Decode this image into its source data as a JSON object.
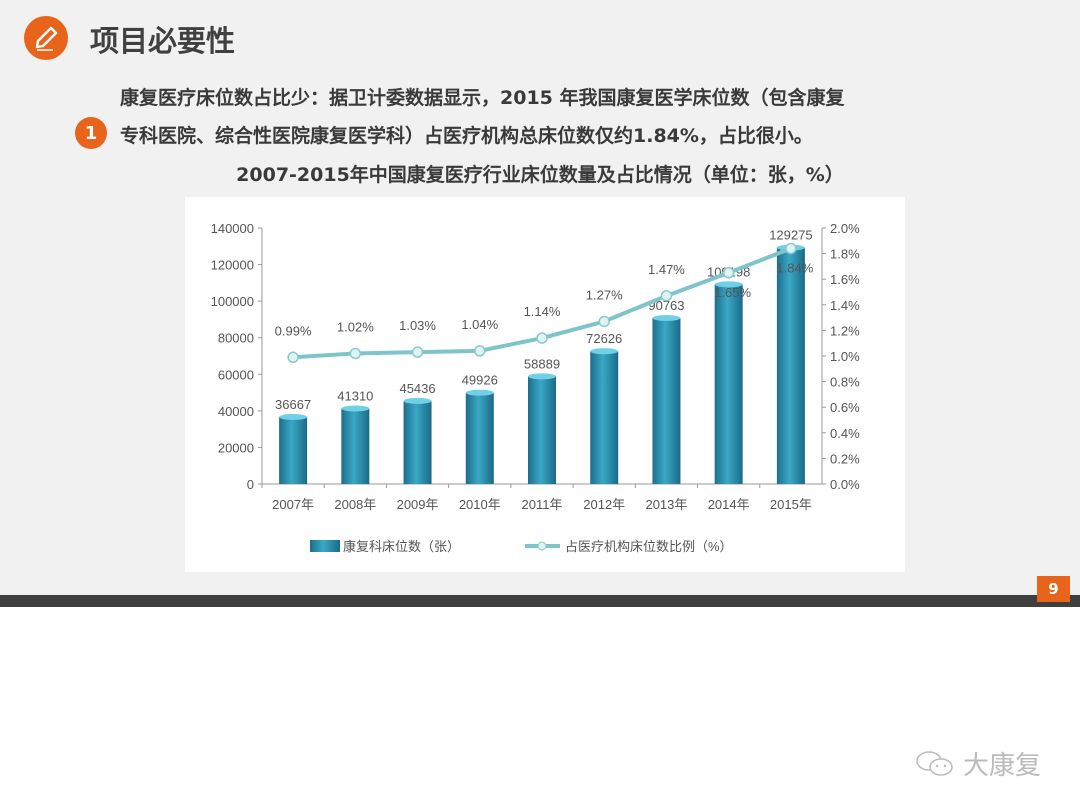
{
  "header": {
    "title": "项目必要性",
    "icon": "pencil-icon"
  },
  "bullet": {
    "number": "1"
  },
  "body": {
    "line1": "康复医疗床位数占比少：据卫计委数据显示，2015 年我国康复医学床位数（包含康复",
    "line2": "专科医院、综合性医院康复医学科）占医疗机构总床位数仅约1.84%，占比很小。"
  },
  "chart_title": "2007-2015年中国康复医疗行业床位数量及占比情况（单位：张，%）",
  "chart_data": {
    "type": "bar+line",
    "categories": [
      "2007年",
      "2008年",
      "2009年",
      "2010年",
      "2011年",
      "2012年",
      "2013年",
      "2014年",
      "2015年"
    ],
    "series": [
      {
        "name": "康复科床位数（张）",
        "type": "bar",
        "axis": "left",
        "color": "#2b8fae",
        "values": [
          36667,
          41310,
          45436,
          49926,
          58889,
          72626,
          90763,
          109198,
          129275
        ],
        "labels": [
          "36667",
          "41310",
          "45436",
          "49926",
          "58889",
          "72626",
          "90763",
          "109198",
          "129275"
        ]
      },
      {
        "name": "占医疗机构床位数比例（%）",
        "type": "line",
        "axis": "right",
        "color": "#7fc4c9",
        "values": [
          0.99,
          1.02,
          1.03,
          1.04,
          1.14,
          1.27,
          1.47,
          1.65,
          1.84
        ],
        "labels": [
          "0.99%",
          "1.02%",
          "1.03%",
          "1.04%",
          "1.14%",
          "1.27%",
          "1.47%",
          "1.65%",
          "1.84%"
        ]
      }
    ],
    "y_left": {
      "range": [
        0,
        140000
      ],
      "ticks": [
        "0",
        "20000",
        "40000",
        "60000",
        "80000",
        "100000",
        "120000",
        "140000"
      ]
    },
    "y_right": {
      "range": [
        0,
        2.0
      ],
      "ticks": [
        "0.0%",
        "0.2%",
        "0.4%",
        "0.6%",
        "0.8%",
        "1.0%",
        "1.2%",
        "1.4%",
        "1.6%",
        "1.8%",
        "2.0%"
      ]
    },
    "legend_position": "bottom",
    "grid": false
  },
  "footer": {
    "page": "9",
    "watermark": "大康复"
  }
}
